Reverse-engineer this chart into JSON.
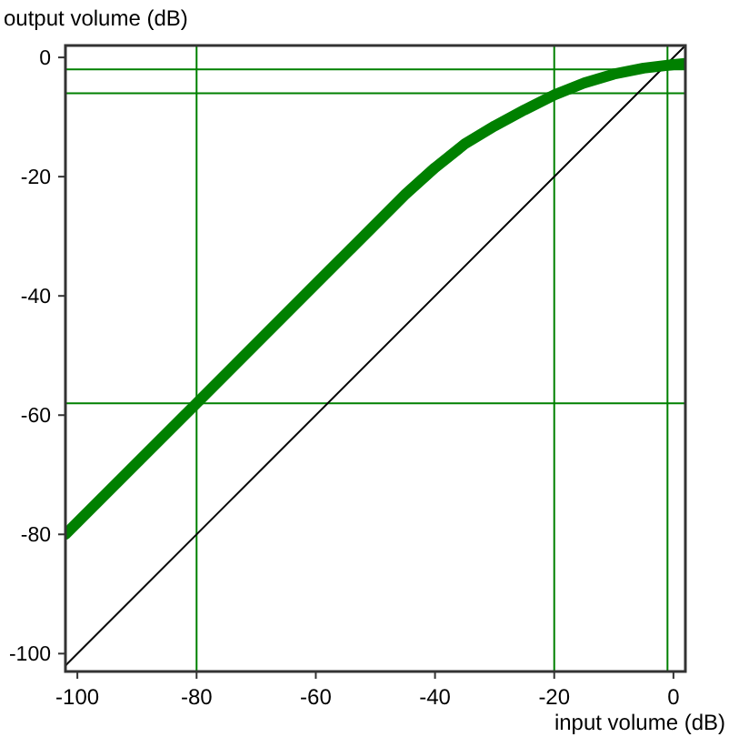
{
  "chart_data": {
    "type": "line",
    "xlabel": "input volume (dB)",
    "ylabel": "output volume (dB)",
    "xlim": [
      -102,
      2
    ],
    "ylim": [
      -103,
      2
    ],
    "xticks": [
      -100,
      -80,
      -60,
      -40,
      -20,
      0
    ],
    "yticks": [
      -100,
      -80,
      -60,
      -40,
      -20,
      0
    ],
    "grid": false,
    "marker": "none",
    "series": [
      {
        "color": "#000000",
        "x": [
          -102,
          2
        ],
        "values": [
          -102,
          2
        ]
      },
      {
        "color": "#008000",
        "x": [
          -102,
          -80,
          -60,
          -45,
          -40,
          -35,
          -30,
          -25,
          -20,
          -15,
          -10,
          -5,
          0,
          2
        ],
        "values": [
          -80,
          -58,
          -38,
          -23,
          -18.5,
          -14.5,
          -11.5,
          -8.8,
          -6.3,
          -4.3,
          -2.8,
          -1.8,
          -1.2,
          -1
        ]
      }
    ],
    "ref_lines": [
      {
        "axis": "x",
        "value": -80,
        "color": "#008000"
      },
      {
        "axis": "x",
        "value": -20,
        "color": "#008000"
      },
      {
        "axis": "x",
        "value": -1,
        "color": "#008000"
      },
      {
        "axis": "y",
        "value": -58,
        "color": "#008000"
      },
      {
        "axis": "y",
        "value": -6,
        "color": "#008000"
      },
      {
        "axis": "y",
        "value": -2,
        "color": "#008000"
      }
    ]
  }
}
